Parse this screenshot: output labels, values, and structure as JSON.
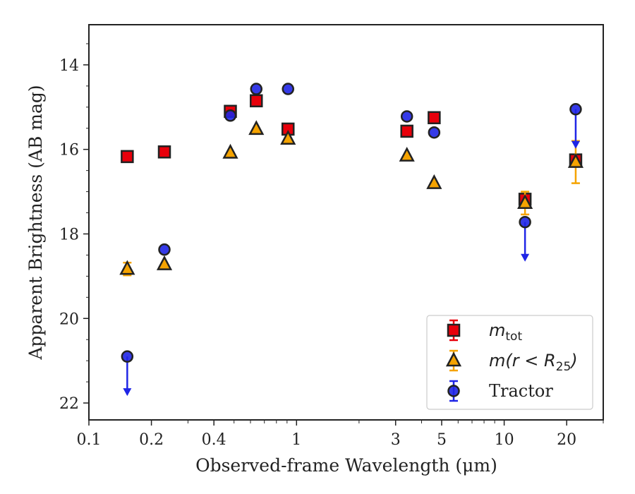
{
  "chart_data": {
    "type": "scatter",
    "xscale": "log",
    "xlim": [
      0.1,
      30
    ],
    "ylim": [
      22.4,
      13.05
    ],
    "y_inverted": true,
    "xlabel": "Observed-frame Wavelength (μm)",
    "ylabel": "Apparent Brightness (AB mag)",
    "x_ticks": [
      {
        "value": 0.1,
        "label": "0.1"
      },
      {
        "value": 0.2,
        "label": "0.2"
      },
      {
        "value": 0.4,
        "label": "0.4"
      },
      {
        "value": 1,
        "label": "1"
      },
      {
        "value": 3,
        "label": "3"
      },
      {
        "value": 5,
        "label": "5"
      },
      {
        "value": 10,
        "label": "10"
      },
      {
        "value": 20,
        "label": "20"
      }
    ],
    "y_ticks": [
      {
        "value": 14,
        "label": "14"
      },
      {
        "value": 16,
        "label": "16"
      },
      {
        "value": 18,
        "label": "18"
      },
      {
        "value": 20,
        "label": "20"
      },
      {
        "value": 22,
        "label": "22"
      }
    ],
    "grid": false,
    "legend_position": "lower-right",
    "series": [
      {
        "name": "m_tot",
        "legend_label": {
          "main": "m",
          "sub": "tot"
        },
        "marker": "square",
        "color": "#e8000b",
        "points": [
          {
            "x": 0.153,
            "y": 16.17
          },
          {
            "x": 0.231,
            "y": 16.06
          },
          {
            "x": 0.48,
            "y": 15.1
          },
          {
            "x": 0.64,
            "y": 14.85
          },
          {
            "x": 0.91,
            "y": 15.52
          },
          {
            "x": 3.4,
            "y": 15.57
          },
          {
            "x": 4.6,
            "y": 15.25
          },
          {
            "x": 12.6,
            "y": 17.18,
            "err": 0.13
          },
          {
            "x": 22.1,
            "y": 16.25,
            "err": 0.12
          }
        ]
      },
      {
        "name": "m(r<R25)",
        "legend_label": {
          "main": "m(r < R",
          "sub": "25",
          "tail": ")"
        },
        "marker": "triangle",
        "color": "#f5a300",
        "points": [
          {
            "x": 0.153,
            "y": 18.83,
            "err": 0.15
          },
          {
            "x": 0.231,
            "y": 18.72
          },
          {
            "x": 0.48,
            "y": 16.08
          },
          {
            "x": 0.64,
            "y": 15.52
          },
          {
            "x": 0.91,
            "y": 15.75
          },
          {
            "x": 3.4,
            "y": 16.15
          },
          {
            "x": 4.6,
            "y": 16.8
          },
          {
            "x": 12.6,
            "y": 17.27,
            "err": 0.27
          },
          {
            "x": 22.1,
            "y": 16.3,
            "err": 0.5
          }
        ]
      },
      {
        "name": "Tractor",
        "legend_label": {
          "main": "Tractor"
        },
        "marker": "circle",
        "color": "#1f25e6",
        "points": [
          {
            "x": 0.153,
            "y": 20.9,
            "upper_limit": true
          },
          {
            "x": 0.231,
            "y": 18.37
          },
          {
            "x": 0.48,
            "y": 15.2
          },
          {
            "x": 0.64,
            "y": 14.57
          },
          {
            "x": 0.91,
            "y": 14.57
          },
          {
            "x": 3.4,
            "y": 15.22
          },
          {
            "x": 4.6,
            "y": 15.6
          },
          {
            "x": 12.6,
            "y": 17.72,
            "upper_limit": true
          },
          {
            "x": 22.1,
            "y": 15.05,
            "upper_limit": true
          }
        ]
      }
    ]
  }
}
